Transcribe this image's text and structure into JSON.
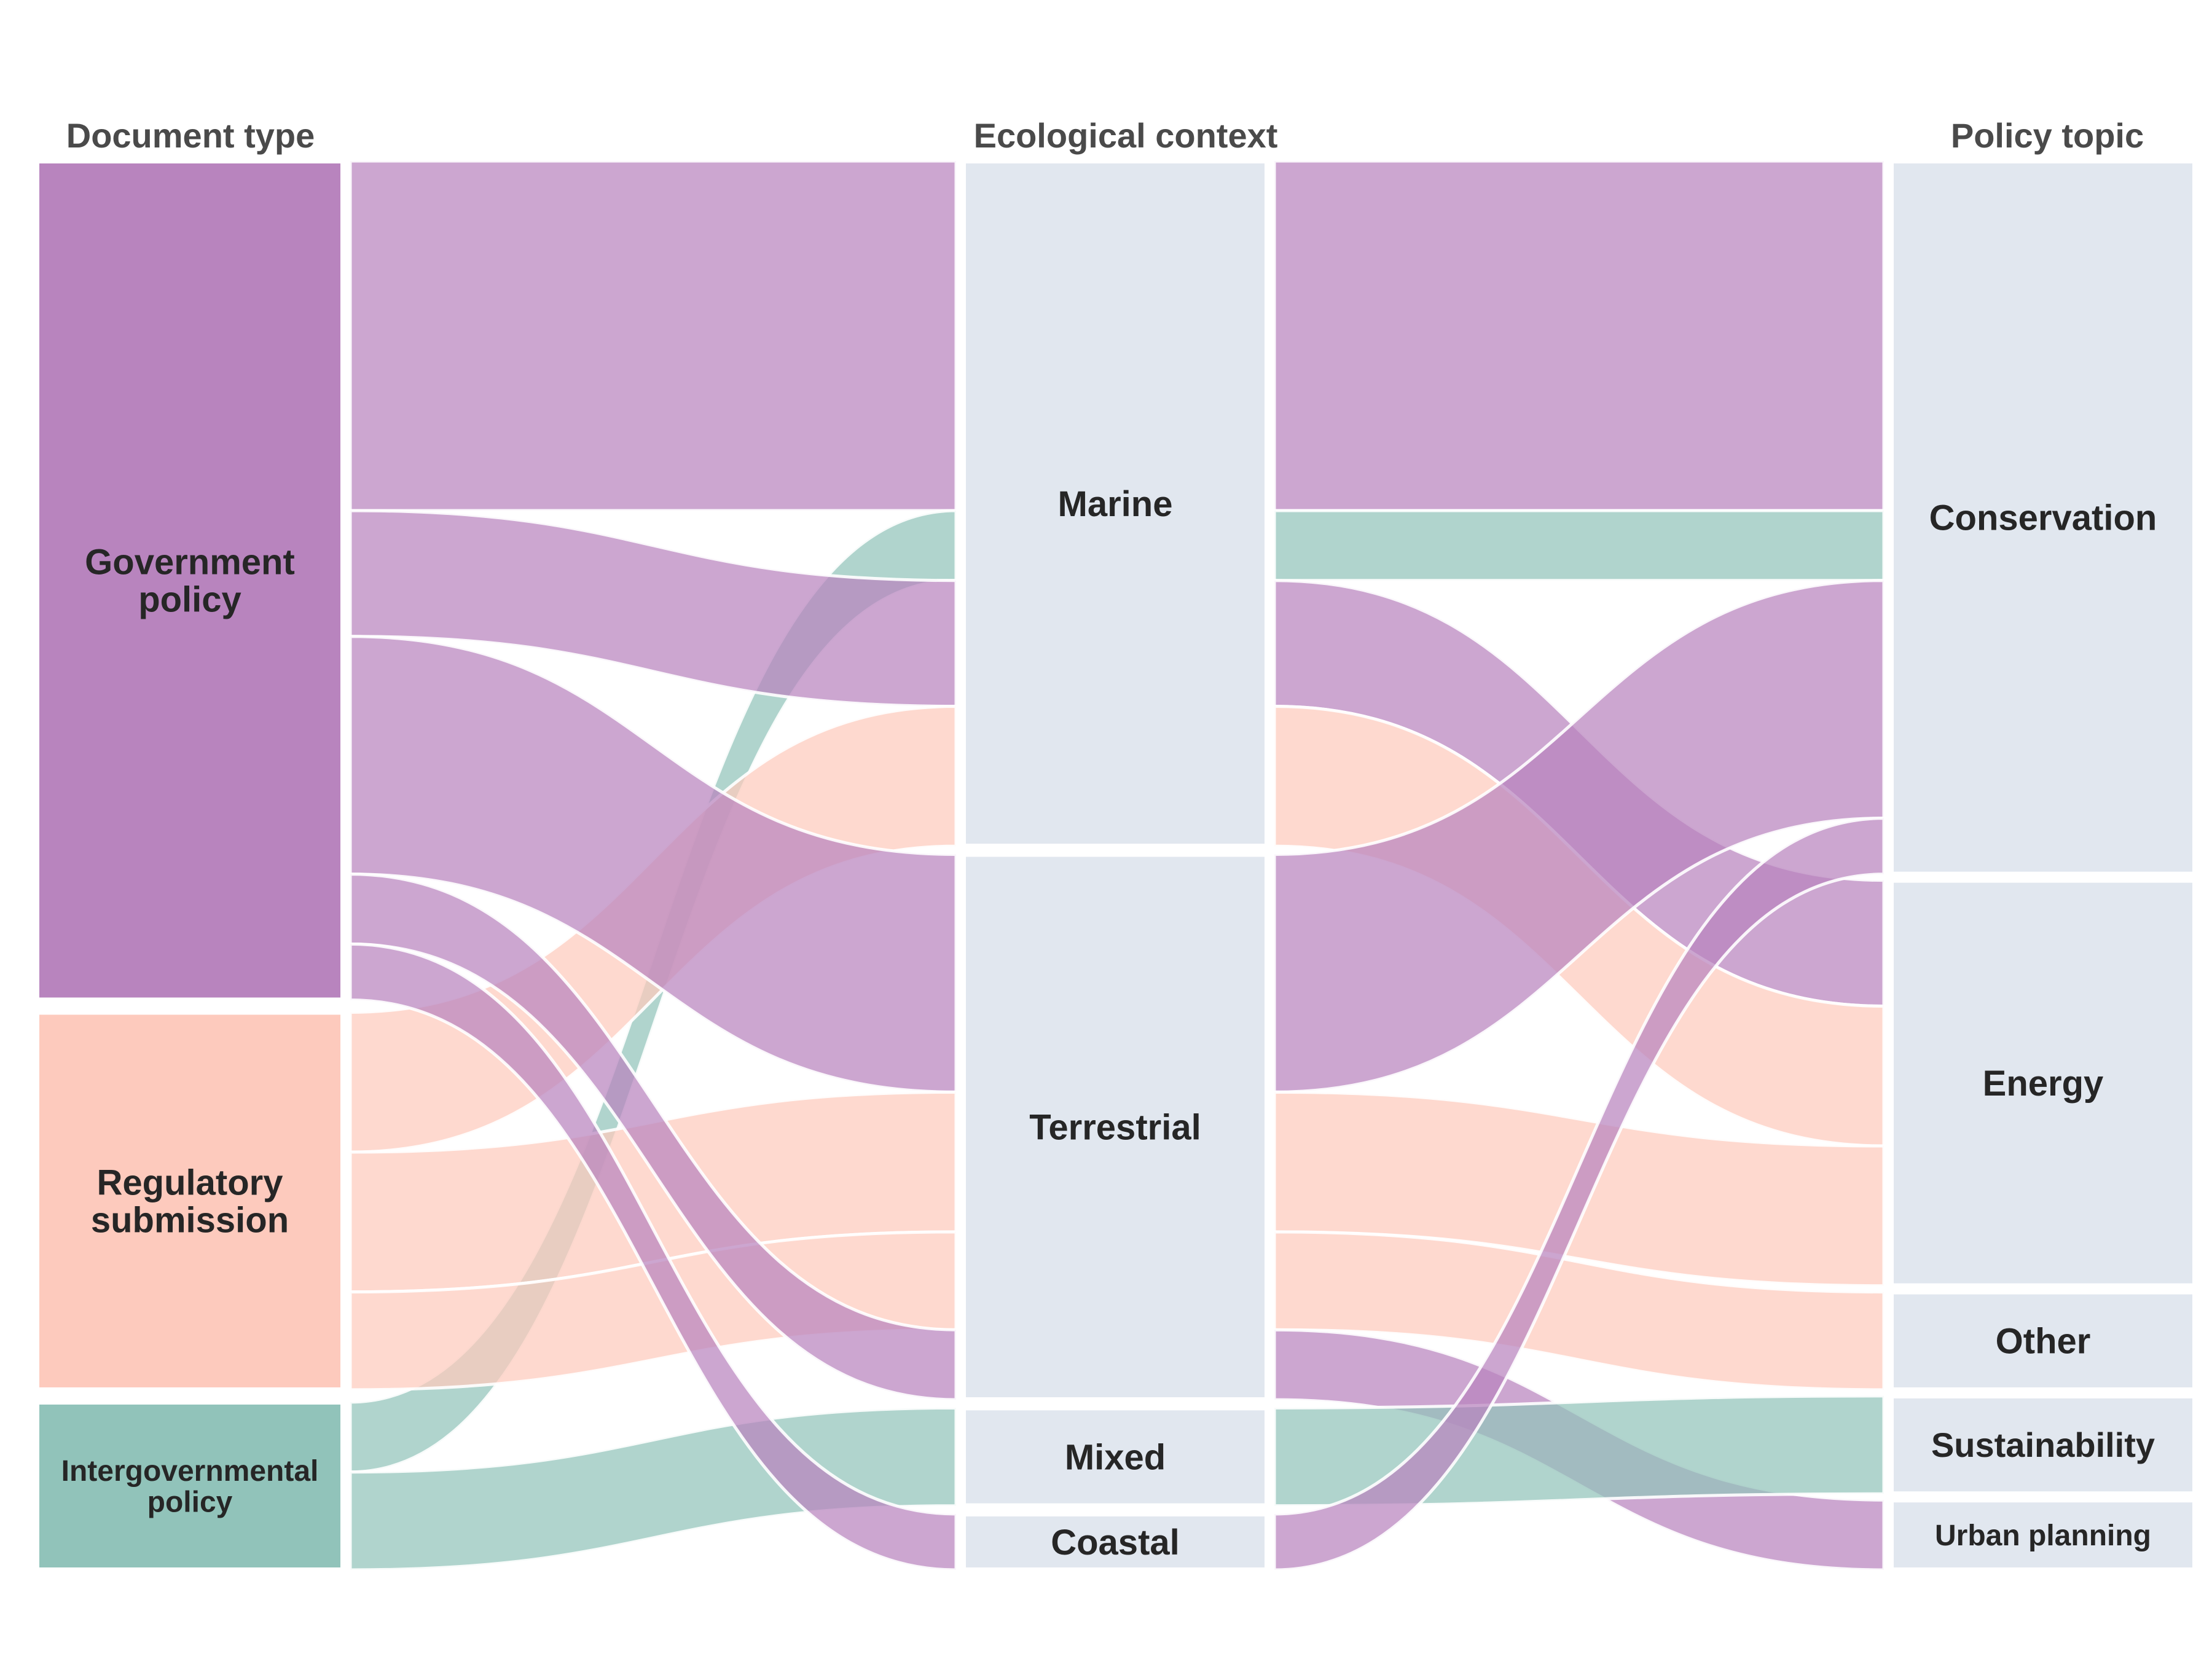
{
  "chart_data": {
    "type": "alluvial",
    "title": "",
    "axes": [
      {
        "key": "doc",
        "title": "Document type"
      },
      {
        "key": "eco",
        "title": "Ecological context"
      },
      {
        "key": "topic",
        "title": "Policy topic"
      }
    ],
    "nodes": {
      "doc": [
        {
          "key": "gov",
          "label": "Government\npolicy",
          "color": "#b884be",
          "value": 15
        },
        {
          "key": "reg",
          "label": "Regulatory\nsubmission",
          "color": "#fdcabd",
          "value": 6.75
        },
        {
          "key": "igo",
          "label": "Intergovernmental\npolicy",
          "color": "#91c3ba",
          "value": 3
        }
      ],
      "eco": [
        {
          "key": "marine",
          "label": "Marine",
          "color": "#e1e7ef",
          "value": 12.25
        },
        {
          "key": "terrestrial",
          "label": "Terrestrial",
          "color": "#e1e7ef",
          "value": 9.75
        },
        {
          "key": "mixed",
          "label": "Mixed",
          "color": "#e1e7ef",
          "value": 1.75
        },
        {
          "key": "coastal",
          "label": "Coastal",
          "color": "#e1e7ef",
          "value": 1
        }
      ],
      "topic": [
        {
          "key": "conservation",
          "label": "Conservation",
          "color": "#e1e7ef",
          "value": 12.75
        },
        {
          "key": "energy",
          "label": "Energy",
          "color": "#e1e7ef",
          "value": 7.25
        },
        {
          "key": "other",
          "label": "Other",
          "color": "#e1e7ef",
          "value": 1.75
        },
        {
          "key": "sustainability",
          "label": "Sustainability",
          "color": "#e1e7ef",
          "value": 1.75
        },
        {
          "key": "urban",
          "label": "Urban planning",
          "color": "#e1e7ef",
          "value": 1.25
        }
      ]
    },
    "colors": {
      "gov": "#b884be",
      "reg": "#fdcabd",
      "igo": "#91c3ba"
    },
    "alluvia": [
      {
        "doc": "gov",
        "eco": "marine",
        "topic": "conservation",
        "value": 6.25
      },
      {
        "doc": "igo",
        "eco": "marine",
        "topic": "conservation",
        "value": 1.25
      },
      {
        "doc": "gov",
        "eco": "marine",
        "topic": "energy",
        "value": 2.25
      },
      {
        "doc": "reg",
        "eco": "marine",
        "topic": "energy",
        "value": 2.5
      },
      {
        "doc": "gov",
        "eco": "terrestrial",
        "topic": "conservation",
        "value": 4.25
      },
      {
        "doc": "reg",
        "eco": "terrestrial",
        "topic": "energy",
        "value": 2.5
      },
      {
        "doc": "reg",
        "eco": "terrestrial",
        "topic": "other",
        "value": 1.75
      },
      {
        "doc": "gov",
        "eco": "terrestrial",
        "topic": "urban",
        "value": 1.25
      },
      {
        "doc": "igo",
        "eco": "mixed",
        "topic": "sustainability",
        "value": 1.75
      },
      {
        "doc": "gov",
        "eco": "coastal",
        "topic": "conservation",
        "value": 1
      }
    ]
  }
}
